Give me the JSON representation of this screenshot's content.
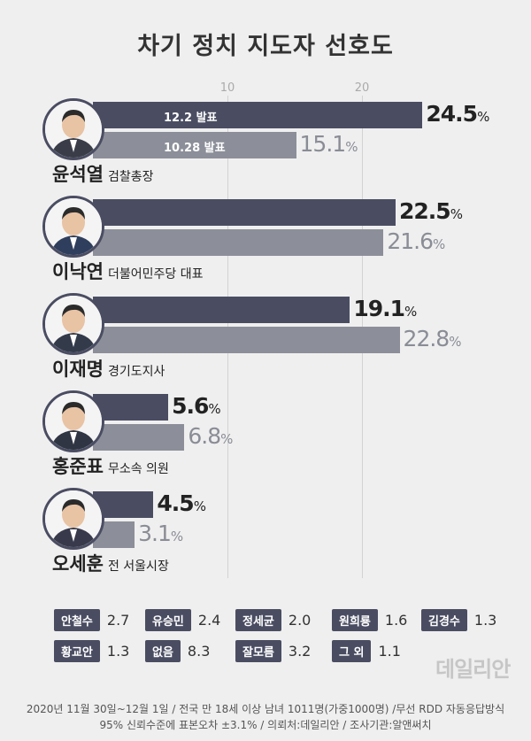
{
  "chart_data": {
    "type": "bar",
    "title": "차기 정치 지도자 선호도",
    "x_ticks": [
      "10",
      "20"
    ],
    "series": [
      {
        "name": "12.2 발표",
        "values": [
          24.5,
          22.5,
          19.1,
          5.6,
          4.5
        ]
      },
      {
        "name": "10.28 발표",
        "values": [
          15.1,
          21.6,
          22.8,
          6.8,
          3.1
        ]
      }
    ],
    "categories": [
      {
        "name": "윤석열",
        "role": "검찰총장"
      },
      {
        "name": "이낙연",
        "role": "더불어민주당 대표"
      },
      {
        "name": "이재명",
        "role": "경기도지사"
      },
      {
        "name": "홍준표",
        "role": "무소속 의원"
      },
      {
        "name": "오세훈",
        "role": "전 서울시장"
      }
    ],
    "others": [
      {
        "name": "안철수",
        "value": "2.7"
      },
      {
        "name": "유승민",
        "value": "2.4"
      },
      {
        "name": "정세균",
        "value": "2.0"
      },
      {
        "name": "원희룡",
        "value": "1.6"
      },
      {
        "name": "김경수",
        "value": "1.3"
      },
      {
        "name": "황교안",
        "value": "1.3"
      },
      {
        "name": "없음",
        "value": "8.3"
      },
      {
        "name": "잘모름",
        "value": "3.2"
      },
      {
        "name": "그 외",
        "value": "1.1"
      }
    ],
    "percent_sign": "%",
    "colors": {
      "current": "#4a4d62",
      "previous": "#8c8f99"
    }
  },
  "watermark": "데일리안",
  "footnote": {
    "line1": "2020년 11월 30일~12월 1일 / 전국 만 18세 이상 남녀 1011명(가중1000명) /무선 RDD 자동응답방식",
    "line2": "95% 신뢰수준에 표본오차 ±3.1% / 의뢰처:데일리안 / 조사기관:알앤써치"
  }
}
